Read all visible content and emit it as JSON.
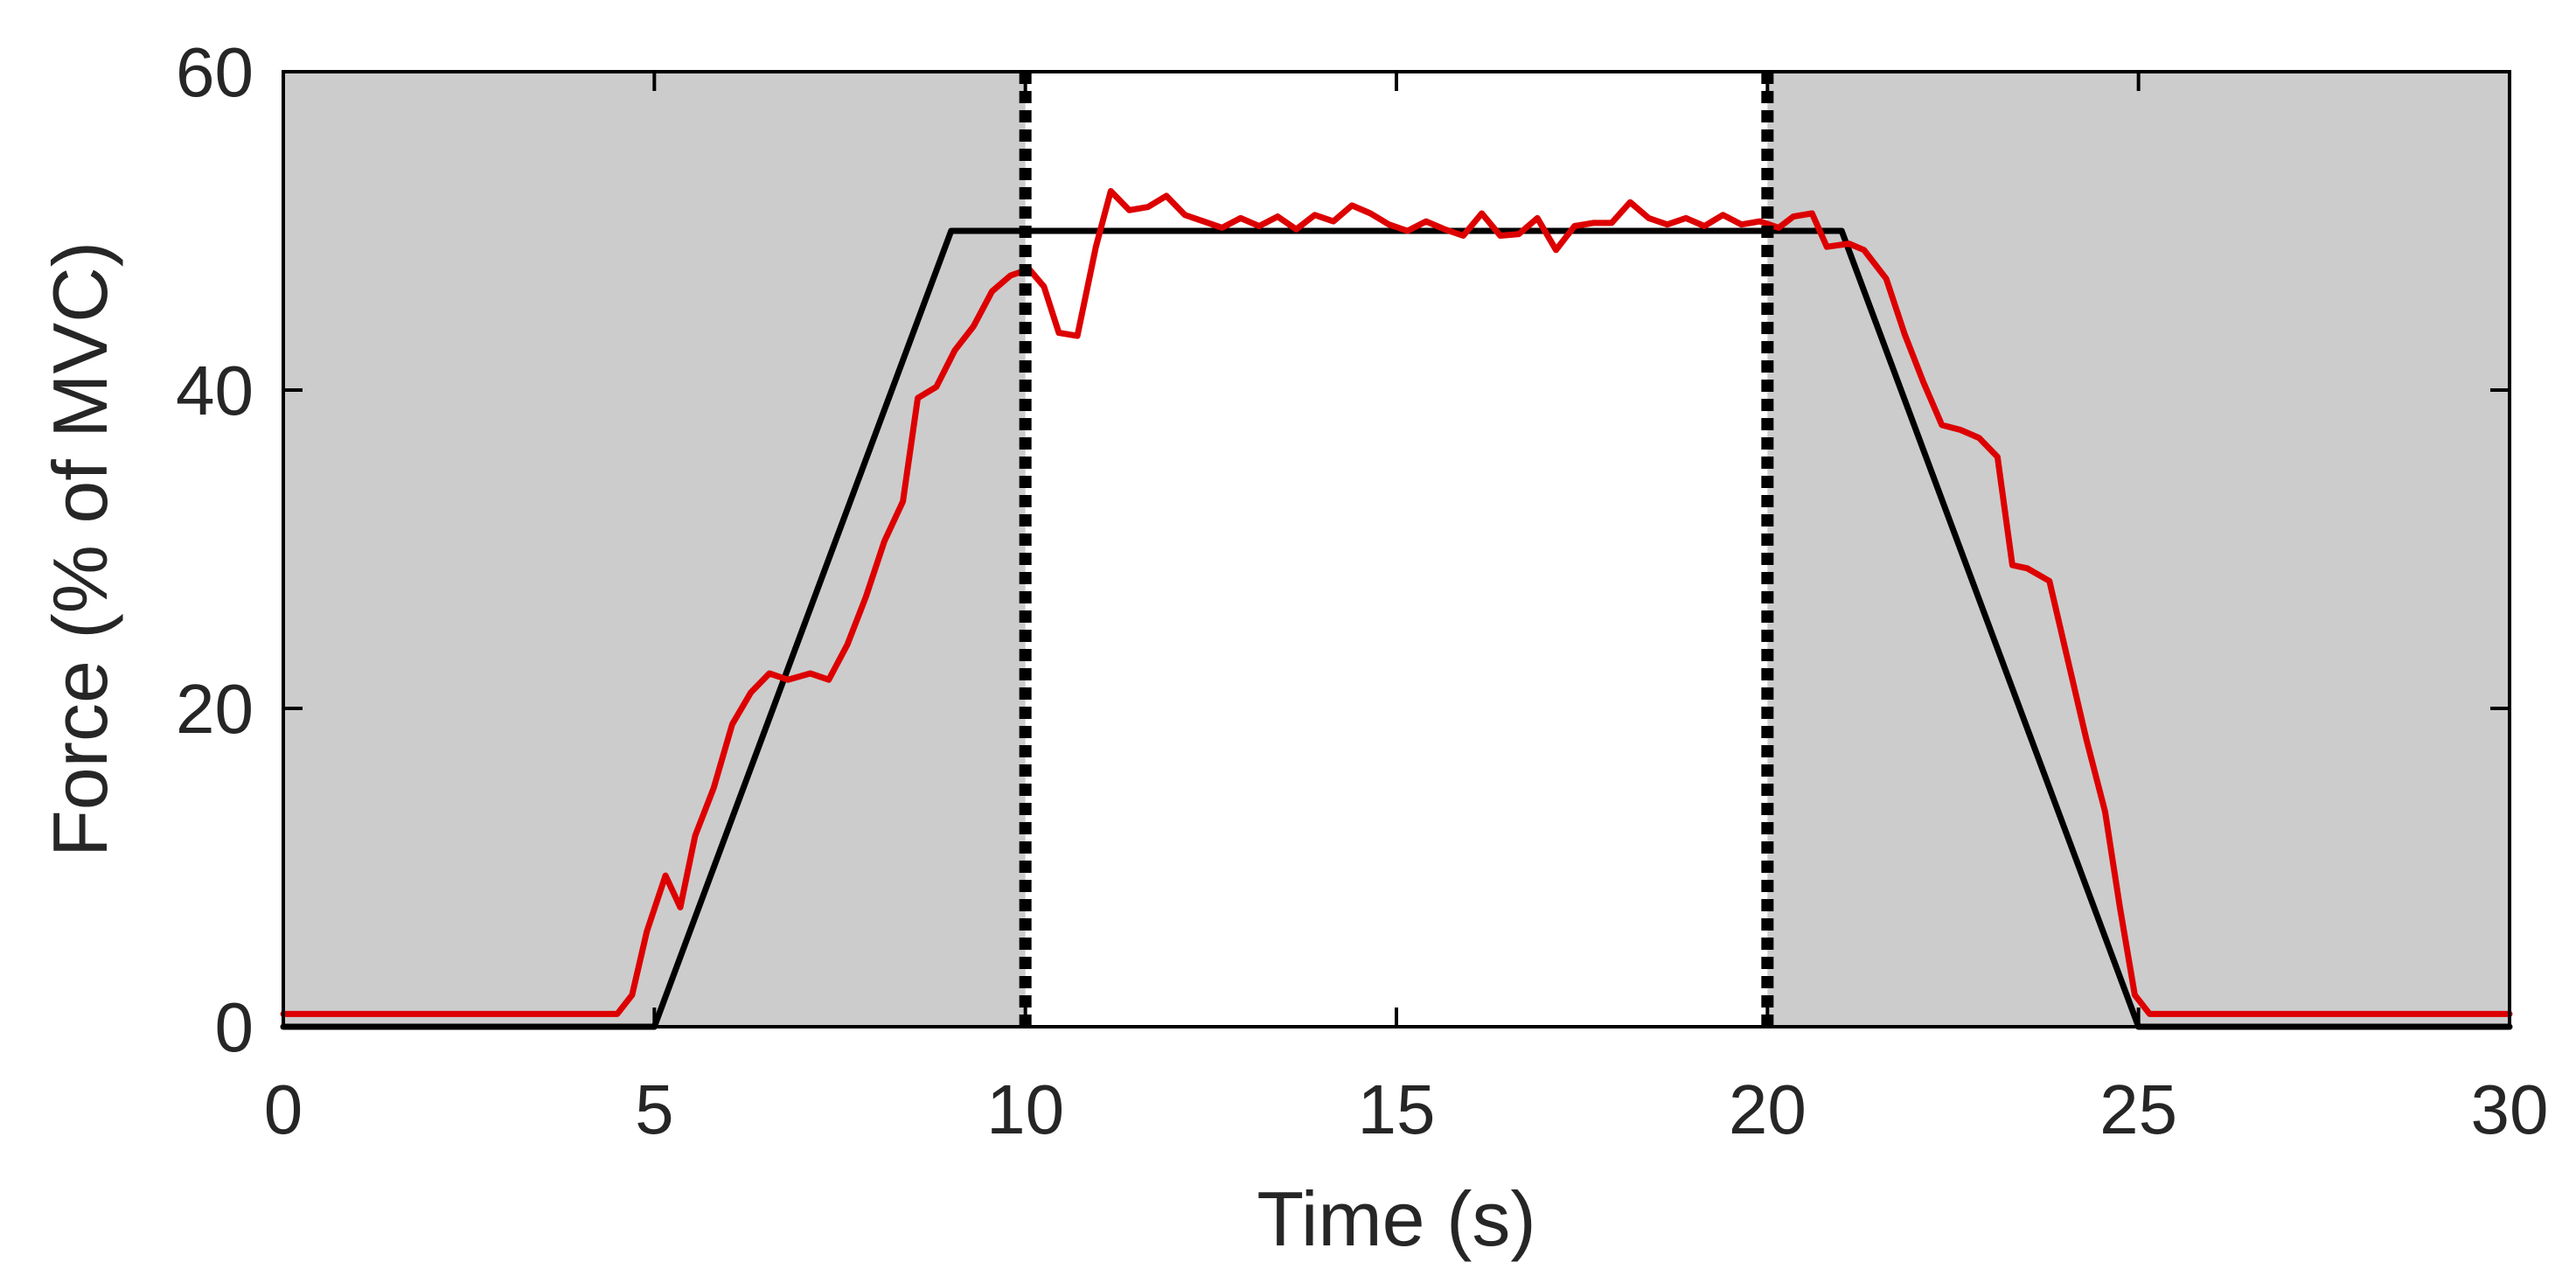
{
  "chart_data": {
    "type": "line",
    "title": "",
    "xlabel": "Time (s)",
    "ylabel": "Force (% of MVC)",
    "xlim": [
      0,
      30
    ],
    "ylim": [
      0,
      60
    ],
    "xticks": [
      0,
      5,
      10,
      15,
      20,
      25,
      30
    ],
    "yticks": [
      0,
      20,
      40,
      60
    ],
    "grid": false,
    "legend": "none",
    "shaded_regions": [
      {
        "x_start": 0,
        "x_end": 10,
        "color": "#cccccc"
      },
      {
        "x_start": 20,
        "x_end": 30,
        "color": "#cccccc"
      }
    ],
    "vertical_lines": [
      {
        "x": 10,
        "style": "dotted",
        "color": "#000000"
      },
      {
        "x": 20,
        "style": "dotted",
        "color": "#000000"
      }
    ],
    "series": [
      {
        "color": "#000000",
        "points": [
          [
            0,
            0
          ],
          [
            5,
            0
          ],
          [
            9,
            50
          ],
          [
            21,
            50
          ],
          [
            25,
            0
          ],
          [
            30,
            0
          ]
        ]
      },
      {
        "color": "#dd0000",
        "points": [
          [
            0,
            0.8
          ],
          [
            4.5,
            0.8
          ],
          [
            4.7,
            2
          ],
          [
            4.9,
            6
          ],
          [
            5.15,
            9.5
          ],
          [
            5.35,
            7.5
          ],
          [
            5.55,
            12
          ],
          [
            5.8,
            15
          ],
          [
            6.05,
            19
          ],
          [
            6.3,
            21
          ],
          [
            6.55,
            22.2
          ],
          [
            6.8,
            21.8
          ],
          [
            7.1,
            22.2
          ],
          [
            7.35,
            21.8
          ],
          [
            7.6,
            24
          ],
          [
            7.85,
            27
          ],
          [
            8.1,
            30.5
          ],
          [
            8.35,
            33
          ],
          [
            8.55,
            39.5
          ],
          [
            8.8,
            40.2
          ],
          [
            9.05,
            42.5
          ],
          [
            9.3,
            44
          ],
          [
            9.55,
            46.2
          ],
          [
            9.8,
            47.2
          ],
          [
            10.05,
            47.6
          ],
          [
            10.25,
            46.5
          ],
          [
            10.45,
            43.6
          ],
          [
            10.7,
            43.4
          ],
          [
            10.95,
            49
          ],
          [
            11.15,
            52.5
          ],
          [
            11.4,
            51.3
          ],
          [
            11.65,
            51.5
          ],
          [
            11.9,
            52.2
          ],
          [
            12.15,
            51
          ],
          [
            12.4,
            50.6
          ],
          [
            12.65,
            50.2
          ],
          [
            12.9,
            50.8
          ],
          [
            13.15,
            50.3
          ],
          [
            13.4,
            50.9
          ],
          [
            13.65,
            50.1
          ],
          [
            13.9,
            51
          ],
          [
            14.15,
            50.6
          ],
          [
            14.4,
            51.6
          ],
          [
            14.65,
            51.1
          ],
          [
            14.9,
            50.4
          ],
          [
            15.15,
            50
          ],
          [
            15.4,
            50.6
          ],
          [
            15.65,
            50.1
          ],
          [
            15.9,
            49.7
          ],
          [
            16.15,
            51.1
          ],
          [
            16.4,
            49.7
          ],
          [
            16.65,
            49.8
          ],
          [
            16.9,
            50.8
          ],
          [
            17.15,
            48.8
          ],
          [
            17.4,
            50.3
          ],
          [
            17.65,
            50.5
          ],
          [
            17.9,
            50.5
          ],
          [
            18.15,
            51.8
          ],
          [
            18.4,
            50.8
          ],
          [
            18.65,
            50.4
          ],
          [
            18.9,
            50.8
          ],
          [
            19.15,
            50.3
          ],
          [
            19.4,
            51
          ],
          [
            19.65,
            50.4
          ],
          [
            19.9,
            50.6
          ],
          [
            20.15,
            50.2
          ],
          [
            20.35,
            50.9
          ],
          [
            20.6,
            51.1
          ],
          [
            20.8,
            49
          ],
          [
            21.1,
            49.2
          ],
          [
            21.3,
            48.8
          ],
          [
            21.6,
            47
          ],
          [
            21.85,
            43.5
          ],
          [
            22.1,
            40.5
          ],
          [
            22.35,
            37.8
          ],
          [
            22.6,
            37.5
          ],
          [
            22.85,
            37
          ],
          [
            23.1,
            35.8
          ],
          [
            23.3,
            29
          ],
          [
            23.5,
            28.8
          ],
          [
            23.8,
            28
          ],
          [
            24.05,
            23
          ],
          [
            24.3,
            18
          ],
          [
            24.55,
            13.5
          ],
          [
            24.75,
            7.5
          ],
          [
            24.95,
            2
          ],
          [
            25.15,
            0.8
          ],
          [
            30,
            0.8
          ]
        ]
      }
    ]
  }
}
